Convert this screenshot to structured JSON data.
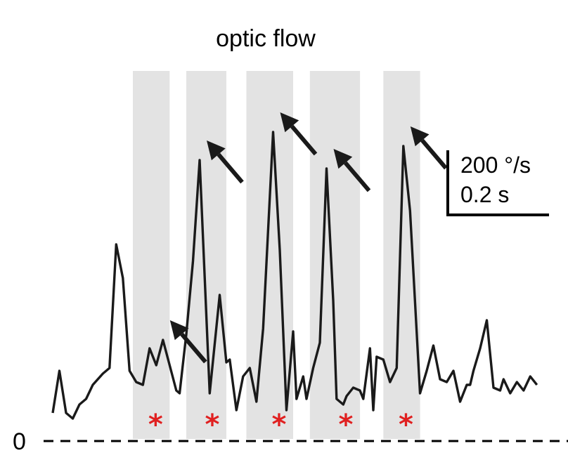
{
  "chart_data": {
    "type": "line",
    "title": "optic flow",
    "baseline_label": "0",
    "scale_bar": {
      "y_label": "200 °/s",
      "x_label": "0.2 s",
      "y_value": 200,
      "x_value": 0.2
    },
    "annotations": {
      "peak_arrows": 5,
      "asterisk_symbol": "*"
    },
    "stimulus_windows": [
      [
        0.24,
        0.35
      ],
      [
        0.4,
        0.52
      ],
      [
        0.58,
        0.72
      ],
      [
        0.77,
        0.92
      ],
      [
        0.99,
        1.1
      ]
    ],
    "series": [
      {
        "values": [
          [
            0.0,
            100
          ],
          [
            0.02,
            250
          ],
          [
            0.04,
            100
          ],
          [
            0.06,
            80
          ],
          [
            0.08,
            130
          ],
          [
            0.1,
            150
          ],
          [
            0.12,
            200
          ],
          [
            0.15,
            240
          ],
          [
            0.17,
            260
          ],
          [
            0.19,
            700
          ],
          [
            0.21,
            580
          ],
          [
            0.23,
            250
          ],
          [
            0.25,
            210
          ],
          [
            0.27,
            200
          ],
          [
            0.29,
            330
          ],
          [
            0.31,
            270
          ],
          [
            0.33,
            360
          ],
          [
            0.35,
            270
          ],
          [
            0.37,
            180
          ],
          [
            0.38,
            170
          ],
          [
            0.4,
            380
          ],
          [
            0.42,
            640
          ],
          [
            0.44,
            1000
          ],
          [
            0.47,
            170
          ],
          [
            0.5,
            520
          ],
          [
            0.52,
            280
          ],
          [
            0.53,
            290
          ],
          [
            0.55,
            110
          ],
          [
            0.57,
            230
          ],
          [
            0.59,
            260
          ],
          [
            0.61,
            140
          ],
          [
            0.63,
            400
          ],
          [
            0.66,
            1100
          ],
          [
            0.68,
            680
          ],
          [
            0.7,
            110
          ],
          [
            0.72,
            390
          ],
          [
            0.73,
            150
          ],
          [
            0.75,
            230
          ],
          [
            0.76,
            150
          ],
          [
            0.78,
            260
          ],
          [
            0.8,
            350
          ],
          [
            0.82,
            970
          ],
          [
            0.84,
            500
          ],
          [
            0.85,
            150
          ],
          [
            0.87,
            130
          ],
          [
            0.88,
            160
          ],
          [
            0.9,
            190
          ],
          [
            0.92,
            180
          ],
          [
            0.93,
            150
          ],
          [
            0.95,
            330
          ],
          [
            0.96,
            110
          ],
          [
            0.97,
            300
          ],
          [
            0.99,
            290
          ],
          [
            1.01,
            210
          ],
          [
            1.03,
            260
          ],
          [
            1.05,
            1050
          ],
          [
            1.07,
            820
          ],
          [
            1.1,
            170
          ],
          [
            1.12,
            250
          ],
          [
            1.14,
            340
          ],
          [
            1.16,
            220
          ],
          [
            1.18,
            210
          ],
          [
            1.2,
            250
          ],
          [
            1.22,
            140
          ],
          [
            1.24,
            200
          ],
          [
            1.25,
            200
          ],
          [
            1.26,
            250
          ],
          [
            1.28,
            330
          ],
          [
            1.3,
            430
          ],
          [
            1.32,
            190
          ],
          [
            1.34,
            180
          ],
          [
            1.35,
            220
          ],
          [
            1.37,
            170
          ],
          [
            1.39,
            210
          ],
          [
            1.41,
            180
          ],
          [
            1.43,
            230
          ],
          [
            1.45,
            200
          ]
        ]
      }
    ]
  }
}
